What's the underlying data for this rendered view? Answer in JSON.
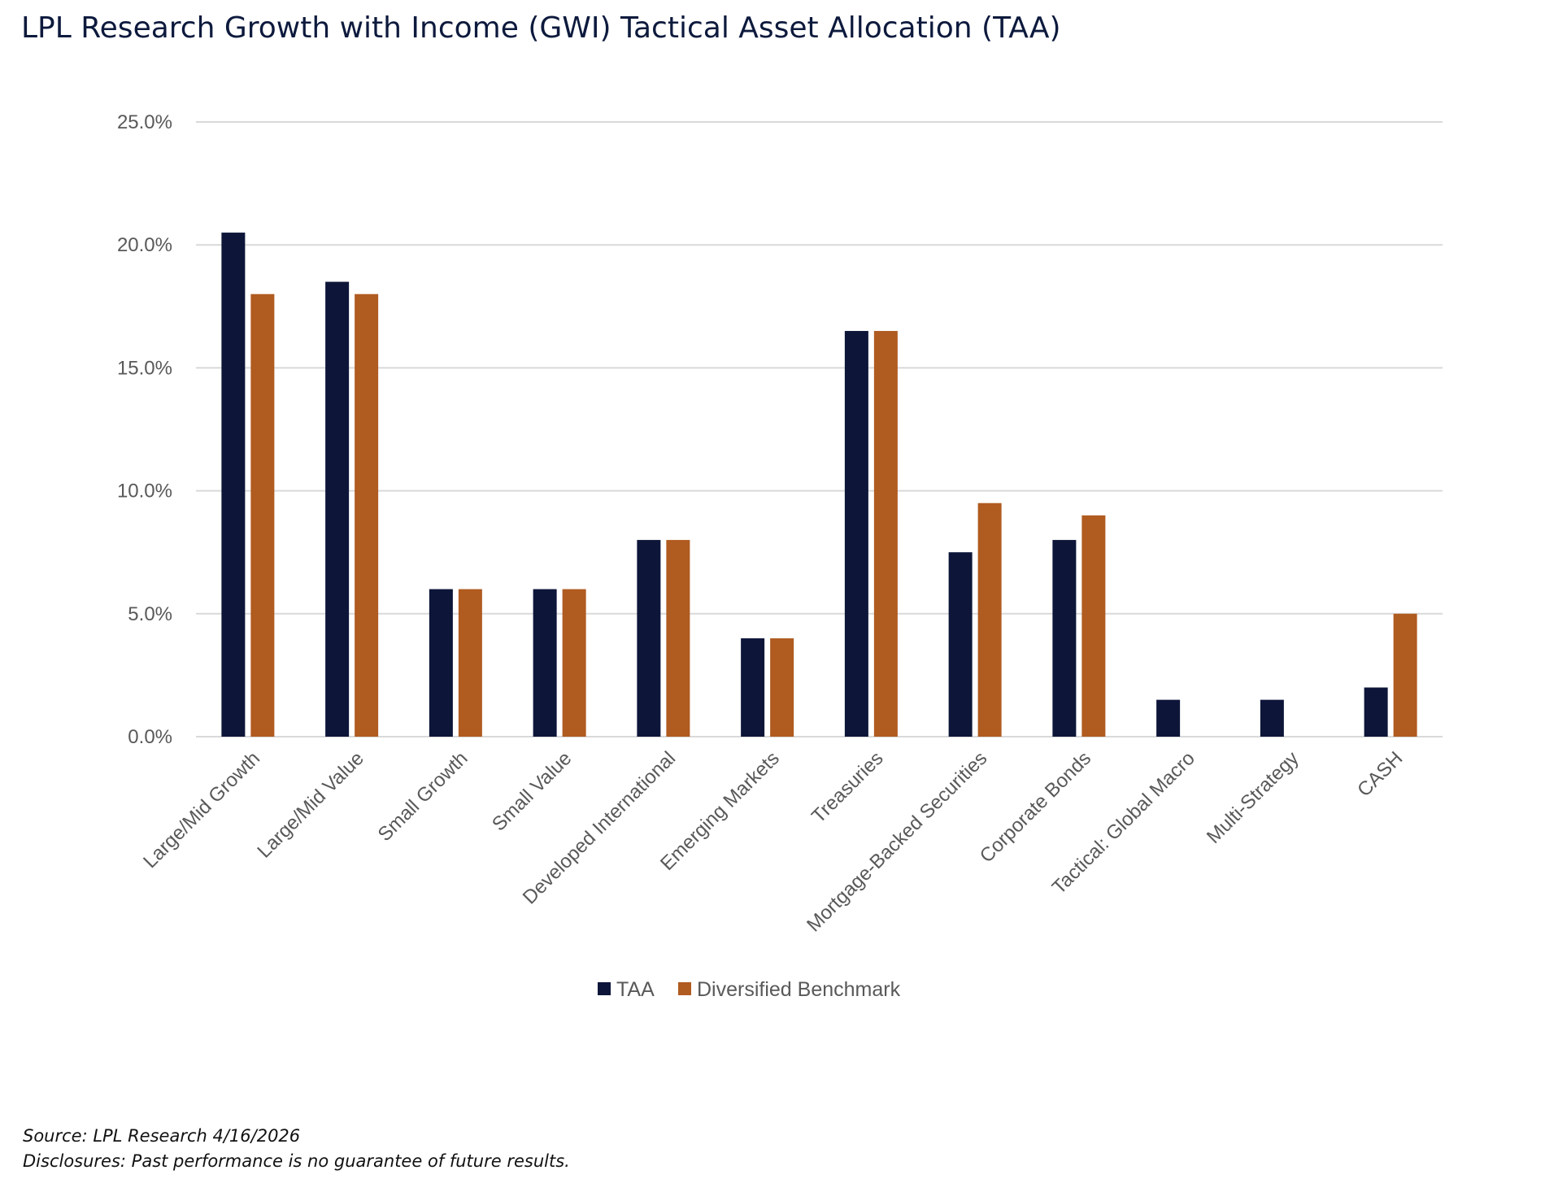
{
  "title": "LPL Research Growth with Income (GWI) Tactical Asset Allocation (TAA)",
  "footnotes": {
    "source": "Source: LPL Research 4/16/2026",
    "disclosure": "Disclosures: Past performance is no guarantee of future results."
  },
  "colors": {
    "taa": "#0d1639",
    "benchmark": "#b05b20",
    "grid": "#d9d9d9",
    "axis_text": "#595959"
  },
  "chart_data": {
    "type": "bar",
    "categories": [
      "Large/Mid Growth",
      "Large/Mid Value",
      "Small Growth",
      "Small Value",
      "Developed International",
      "Emerging Markets",
      "Treasuries",
      "Mortgage-Backed Securities",
      "Corporate Bonds",
      "Tactical: Global Macro",
      "Multi-Strategy",
      "CASH"
    ],
    "series": [
      {
        "name": "TAA",
        "values": [
          20.5,
          18.5,
          6.0,
          6.0,
          8.0,
          4.0,
          16.5,
          7.5,
          8.0,
          1.5,
          1.5,
          2.0
        ]
      },
      {
        "name": "Diversified Benchmark",
        "values": [
          18.0,
          18.0,
          6.0,
          6.0,
          8.0,
          4.0,
          16.5,
          9.5,
          9.0,
          0.0,
          0.0,
          5.0
        ]
      }
    ],
    "yticks": [
      "0.0%",
      "5.0%",
      "10.0%",
      "15.0%",
      "20.0%",
      "25.0%"
    ],
    "ylim": [
      0,
      25
    ],
    "xlabel": "",
    "ylabel": "",
    "grid": true,
    "legend_position": "bottom-center"
  }
}
